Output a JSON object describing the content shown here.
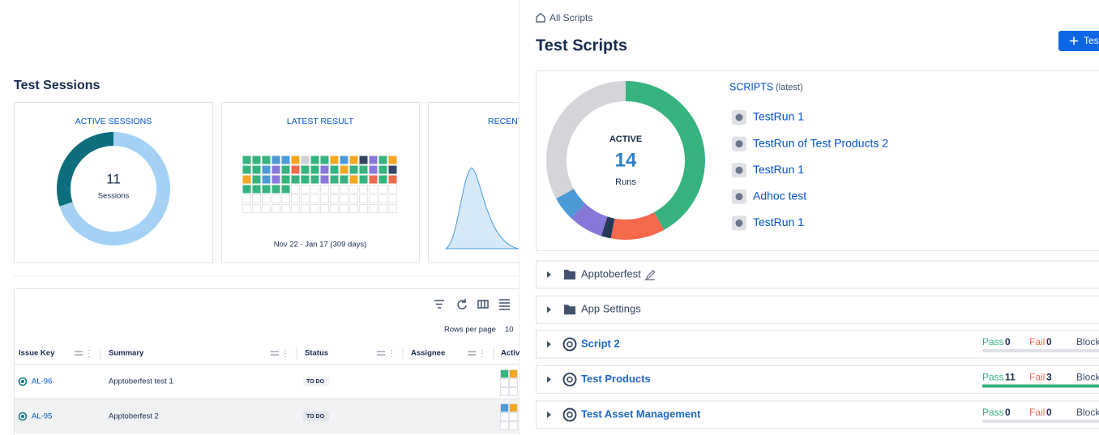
{
  "left": {
    "title": "Test Sessions",
    "active_sessions": {
      "title": "ACTIVE SESSIONS",
      "count": 11,
      "count_label": "Sessions",
      "segments": [
        {
          "value": 70,
          "color": "#a5d1f5"
        },
        {
          "value": 30,
          "color": "#0e6e7d"
        }
      ]
    },
    "latest_result": {
      "title": "LATEST RESULT",
      "range": "Nov 22  -  Jan 17  (309 days)",
      "cells": [
        "#36b37e",
        "#36b37e",
        "#36b37e",
        "#4c9ad6",
        "#4c9ad6",
        "#f5a623",
        "#cfd2d6",
        "#36b37e",
        "#36b37e",
        "#f5a623",
        "#4c9ad6",
        "#f5a623",
        "#344563",
        "#8777d9",
        "#36b37e",
        "#f5a623",
        "#36b37e",
        "#36b37e",
        "#4c9ad6",
        "#8777d9",
        "#36b37e",
        "#f06a4e",
        "#36b37e",
        "#36b37e",
        "#8777d9",
        "#36b37e",
        "#f5a623",
        "#36b37e",
        "#36b37e",
        "#8777d9",
        "#36b37e",
        "#344563",
        "#f5a623",
        "#36b37e",
        "#4c9ad6",
        "#8777d9",
        "#36b37e",
        "#36b37e",
        "#36b37e",
        "#36b37e",
        "#8777d9",
        "#36b37e",
        "#36b37e",
        "#f5a623",
        "#36b37e",
        "#f06a4e",
        "#36b37e",
        "#f06a4e",
        "#36b37e",
        "#36b37e",
        "#36b37e",
        "#36b37e",
        "#36b37e"
      ]
    },
    "recent": {
      "title": "RECENT"
    },
    "rows_per_page_label": "Rows per page",
    "rows_per_page": "10",
    "table": {
      "columns": [
        "Issue Key",
        "Summary",
        "Status",
        "Assignee",
        "Activ"
      ],
      "rows": [
        [
          "AL-96",
          "Apptoberfest test 1",
          "TO DO"
        ],
        [
          "AL-95",
          "Apptoberfest 2",
          "TO DO"
        ]
      ]
    }
  },
  "right": {
    "breadcrumb": "All Scripts",
    "title": "Test Scripts",
    "button": "Test",
    "donut": {
      "label": "ACTIVE",
      "value": 14,
      "unit": "Runs",
      "segments": [
        {
          "value": 42,
          "color": "#36b37e"
        },
        {
          "value": 11,
          "color": "#f56a4b"
        },
        {
          "value": 2,
          "color": "#253858"
        },
        {
          "value": 7,
          "color": "#8777d9"
        },
        {
          "value": 5,
          "color": "#4c9ad6"
        },
        {
          "value": 33,
          "color": "#d3d5d8"
        }
      ]
    },
    "scripts_heading": "SCRIPTS",
    "scripts_note": "(latest)",
    "scripts": [
      "TestRun 1",
      "TestRun of Test Products 2",
      "TestRun 1",
      "Adhoc test",
      "TestRun 1"
    ],
    "folders": [
      "Apptoberfest",
      "App Settings"
    ],
    "pass_label": "Pass",
    "fail_label": "Fail",
    "block_label": "Block",
    "test_scripts": [
      {
        "name": "Script 2",
        "pass": 0,
        "fail": 0
      },
      {
        "name": "Test Products",
        "pass": 11,
        "fail": 3
      },
      {
        "name": "Test Asset Management",
        "pass": 0,
        "fail": 0
      }
    ]
  }
}
